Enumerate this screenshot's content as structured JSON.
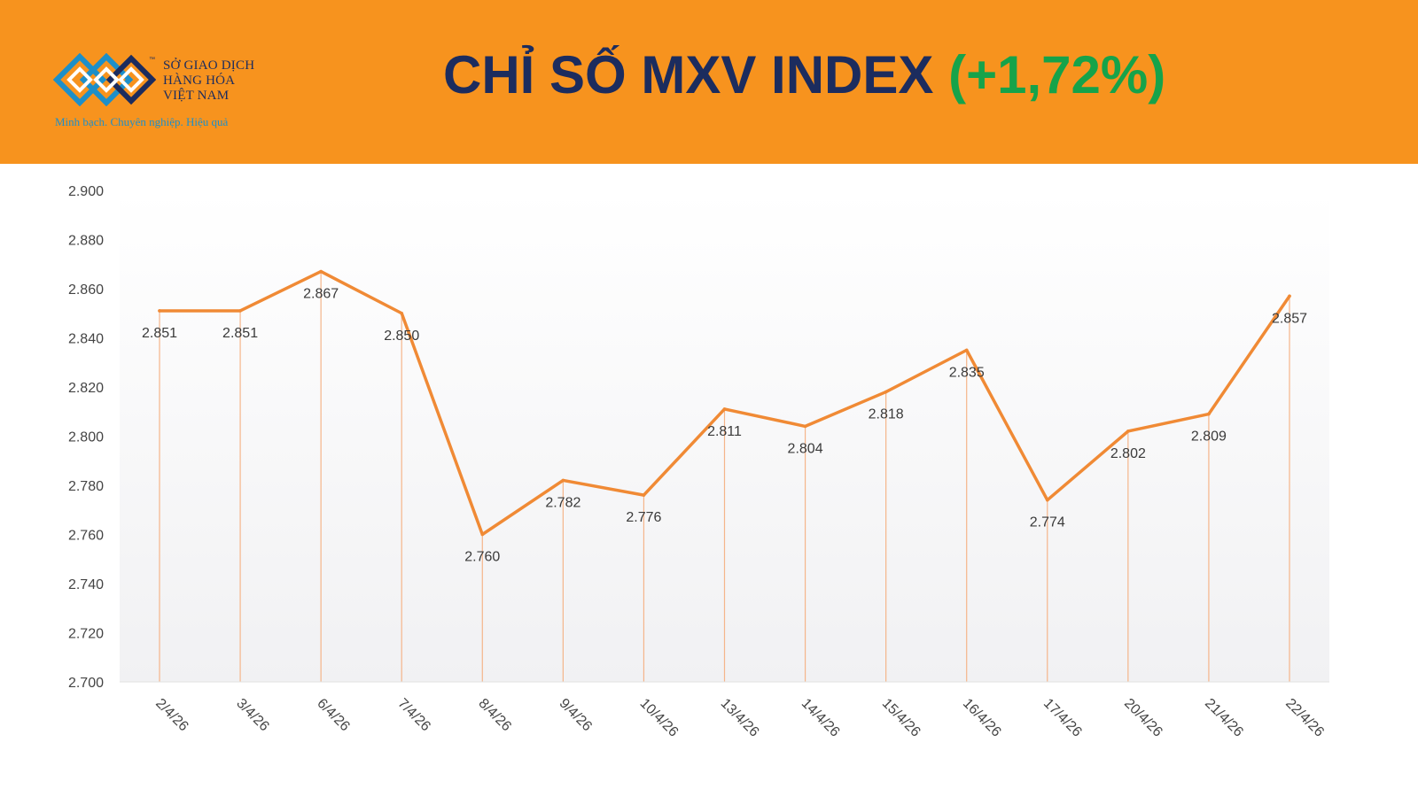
{
  "header": {
    "logo": {
      "name_lines": [
        "SỞ GIAO DỊCH",
        "HÀNG HÓA",
        "VIỆT NAM"
      ],
      "trademark": "™",
      "tagline": "Minh bạch. Chuyên nghiệp. Hiệu quả"
    },
    "title_main": "CHỈ SỐ MXV INDEX ",
    "title_change": "(+1,72%)"
  },
  "colors": {
    "header_bg": "#f7931e",
    "title": "#1c2c5e",
    "change": "#16a34a",
    "line": "#f08a35",
    "drop_line": "#f5b58a"
  },
  "chart_data": {
    "type": "line",
    "categories": [
      "2/4/26",
      "3/4/26",
      "6/4/26",
      "7/4/26",
      "8/4/26",
      "9/4/26",
      "10/4/26",
      "13/4/26",
      "14/4/26",
      "15/4/26",
      "16/4/26",
      "17/4/26",
      "20/4/26",
      "21/4/26",
      "22/4/26"
    ],
    "values": [
      2851,
      2851,
      2867,
      2850,
      2760,
      2782,
      2776,
      2811,
      2804,
      2818,
      2835,
      2774,
      2802,
      2809,
      2857
    ],
    "value_labels": [
      "2.851",
      "2.851",
      "2.867",
      "2.850",
      "2.760",
      "2.782",
      "2.776",
      "2.811",
      "2.804",
      "2.818",
      "2.835",
      "2.774",
      "2.802",
      "2.809",
      "2.857"
    ],
    "y_ticks": [
      2700,
      2720,
      2740,
      2760,
      2780,
      2800,
      2820,
      2840,
      2860,
      2880,
      2900
    ],
    "y_tick_labels": [
      "2.700",
      "2.720",
      "2.740",
      "2.760",
      "2.780",
      "2.800",
      "2.820",
      "2.840",
      "2.860",
      "2.880",
      "2.900"
    ],
    "ylim": [
      2700,
      2900
    ],
    "drop_lines": true,
    "grid": false,
    "legend": "none"
  }
}
